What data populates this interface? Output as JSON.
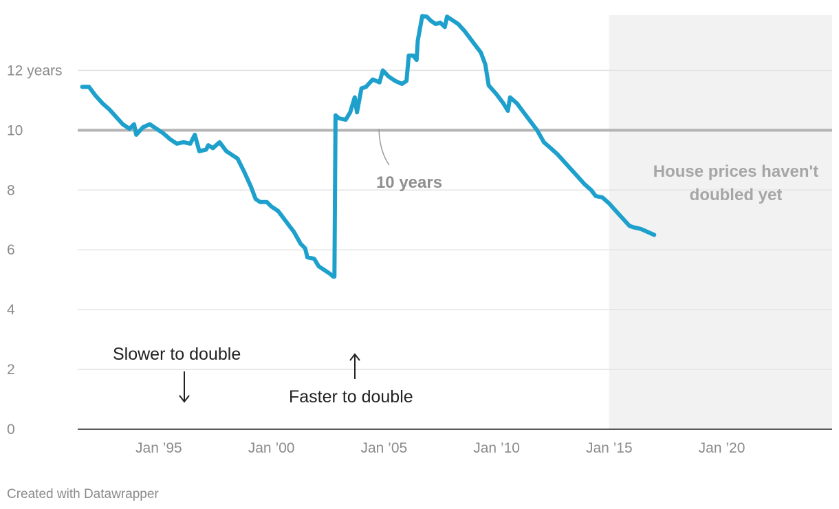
{
  "credit": "Created with Datawrapper",
  "colors": {
    "line": "#1ea0cc",
    "grid": "#e3e3e3",
    "reference": "#b3b3b3",
    "shade": "#f2f2f2",
    "axis": "#222222"
  },
  "chart_data": {
    "type": "line",
    "title": "",
    "xlabel": "",
    "ylabel": "",
    "xlim": [
      1991.4,
      2024.9
    ],
    "ylim": [
      0,
      13.85
    ],
    "grid": true,
    "x_ticks": [
      {
        "value": 1995,
        "label": "Jan ’95"
      },
      {
        "value": 2000,
        "label": "Jan ’00"
      },
      {
        "value": 2005,
        "label": "Jan ’05"
      },
      {
        "value": 2010,
        "label": "Jan ’10"
      },
      {
        "value": 2015,
        "label": "Jan ’15"
      },
      {
        "value": 2020,
        "label": "Jan ’20"
      }
    ],
    "y_ticks": [
      {
        "value": 0,
        "label": "0"
      },
      {
        "value": 2,
        "label": "2"
      },
      {
        "value": 4,
        "label": "4"
      },
      {
        "value": 6,
        "label": "6"
      },
      {
        "value": 8,
        "label": "8"
      },
      {
        "value": 10,
        "label": "10"
      },
      {
        "value": 12,
        "label": "12 years"
      }
    ],
    "reference_line": {
      "value": 10,
      "label": "10 years"
    },
    "shaded_region": {
      "from": 2015.0,
      "to": 2024.9,
      "label_line1": "House prices haven't",
      "label_line2": "doubled yet"
    },
    "annotations": {
      "slower": "Slower to double",
      "faster": "Faster to double"
    },
    "series": [
      {
        "values": [
          [
            1991.6,
            11.45
          ],
          [
            1991.9,
            11.45
          ],
          [
            1992.2,
            11.15
          ],
          [
            1992.5,
            10.9
          ],
          [
            1992.8,
            10.7
          ],
          [
            1993.1,
            10.45
          ],
          [
            1993.4,
            10.2
          ],
          [
            1993.7,
            10.05
          ],
          [
            1993.9,
            10.2
          ],
          [
            1994.0,
            9.85
          ],
          [
            1994.3,
            10.1
          ],
          [
            1994.6,
            10.2
          ],
          [
            1994.9,
            10.05
          ],
          [
            1995.2,
            9.9
          ],
          [
            1995.5,
            9.7
          ],
          [
            1995.8,
            9.55
          ],
          [
            1996.1,
            9.6
          ],
          [
            1996.4,
            9.55
          ],
          [
            1996.6,
            9.85
          ],
          [
            1996.8,
            9.3
          ],
          [
            1997.1,
            9.35
          ],
          [
            1997.2,
            9.5
          ],
          [
            1997.4,
            9.4
          ],
          [
            1997.7,
            9.6
          ],
          [
            1998.0,
            9.3
          ],
          [
            1998.3,
            9.15
          ],
          [
            1998.5,
            9.05
          ],
          [
            1998.8,
            8.6
          ],
          [
            1999.1,
            8.1
          ],
          [
            1999.3,
            7.7
          ],
          [
            1999.5,
            7.6
          ],
          [
            1999.8,
            7.6
          ],
          [
            2000.0,
            7.45
          ],
          [
            2000.3,
            7.3
          ],
          [
            2000.5,
            7.1
          ],
          [
            2000.8,
            6.8
          ],
          [
            2001.0,
            6.6
          ],
          [
            2001.3,
            6.2
          ],
          [
            2001.5,
            6.05
          ],
          [
            2001.6,
            5.75
          ],
          [
            2001.9,
            5.7
          ],
          [
            2002.1,
            5.45
          ],
          [
            2002.4,
            5.3
          ],
          [
            2002.6,
            5.2
          ],
          [
            2002.75,
            5.1
          ],
          [
            2002.8,
            5.1
          ],
          [
            2002.85,
            10.5
          ],
          [
            2003.0,
            10.4
          ],
          [
            2003.3,
            10.35
          ],
          [
            2003.5,
            10.6
          ],
          [
            2003.7,
            11.1
          ],
          [
            2003.8,
            10.6
          ],
          [
            2004.0,
            11.4
          ],
          [
            2004.2,
            11.45
          ],
          [
            2004.5,
            11.7
          ],
          [
            2004.8,
            11.6
          ],
          [
            2004.95,
            12.0
          ],
          [
            2005.2,
            11.8
          ],
          [
            2005.5,
            11.65
          ],
          [
            2005.8,
            11.55
          ],
          [
            2006.0,
            11.65
          ],
          [
            2006.1,
            12.5
          ],
          [
            2006.3,
            12.5
          ],
          [
            2006.45,
            12.35
          ],
          [
            2006.5,
            13.0
          ],
          [
            2006.7,
            13.82
          ],
          [
            2006.9,
            13.8
          ],
          [
            2007.1,
            13.65
          ],
          [
            2007.3,
            13.55
          ],
          [
            2007.5,
            13.6
          ],
          [
            2007.7,
            13.45
          ],
          [
            2007.8,
            13.8
          ],
          [
            2008.0,
            13.7
          ],
          [
            2008.3,
            13.55
          ],
          [
            2008.6,
            13.3
          ],
          [
            2009.0,
            12.9
          ],
          [
            2009.3,
            12.6
          ],
          [
            2009.5,
            12.2
          ],
          [
            2009.65,
            11.5
          ],
          [
            2010.0,
            11.2
          ],
          [
            2010.3,
            10.9
          ],
          [
            2010.5,
            10.65
          ],
          [
            2010.6,
            11.1
          ],
          [
            2010.9,
            10.9
          ],
          [
            2011.2,
            10.6
          ],
          [
            2011.5,
            10.3
          ],
          [
            2011.8,
            10.0
          ],
          [
            2012.1,
            9.6
          ],
          [
            2012.4,
            9.4
          ],
          [
            2012.7,
            9.2
          ],
          [
            2013.0,
            8.95
          ],
          [
            2013.3,
            8.7
          ],
          [
            2013.6,
            8.45
          ],
          [
            2013.9,
            8.2
          ],
          [
            2014.2,
            8.0
          ],
          [
            2014.4,
            7.8
          ],
          [
            2014.7,
            7.75
          ],
          [
            2015.0,
            7.55
          ],
          [
            2015.3,
            7.3
          ],
          [
            2015.6,
            7.05
          ],
          [
            2015.9,
            6.8
          ],
          [
            2016.1,
            6.75
          ],
          [
            2016.4,
            6.7
          ],
          [
            2016.7,
            6.6
          ],
          [
            2017.0,
            6.5
          ]
        ]
      }
    ]
  }
}
